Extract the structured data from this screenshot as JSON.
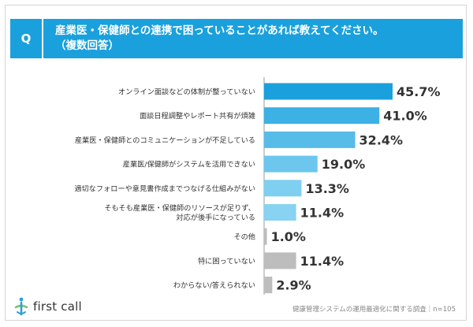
{
  "header": {
    "q_label": "Q",
    "title_line1": "産業医・保健師との連携で困っていることがあれば教えてください。",
    "title_line2": "（複数回答）"
  },
  "chart_data": {
    "type": "bar",
    "orientation": "horizontal",
    "categories": [
      [
        "オンライン面談などの体制が整っていない"
      ],
      [
        "面談日程調整やレポート共有が煩雑"
      ],
      [
        "産業医・保健師とのコミュニケーションが不足している"
      ],
      [
        "産業医/保健師がシステムを活用できない"
      ],
      [
        "適切なフォローや意見書作成までつなげる仕組みがない"
      ],
      [
        "そもそも産業医・保健師のリソースが足りず、",
        "対応が後手になっている"
      ],
      [
        "その他"
      ],
      [
        "特に困っていない"
      ],
      [
        "わからない/答えられない"
      ]
    ],
    "values": [
      45.7,
      41.0,
      32.4,
      19.0,
      13.3,
      11.4,
      1.0,
      11.4,
      2.9
    ],
    "value_labels": [
      "45.7%",
      "41.0%",
      "32.4%",
      "19.0%",
      "13.3%",
      "11.4%",
      "1.0%",
      "11.4%",
      "2.9%"
    ],
    "bar_colors": [
      "#1aa0dc",
      "#3db0e4",
      "#57bce8",
      "#6cc6ed",
      "#7fcff0",
      "#89d3f2",
      "#bdbdbd",
      "#bdbdbd",
      "#bdbdbd"
    ],
    "xlim": [
      0,
      50
    ],
    "grid": false,
    "legend": "none"
  },
  "footer": {
    "logo_text": "first call",
    "source": "健康管理システムの運用最適化に関する調査｜n=105"
  }
}
